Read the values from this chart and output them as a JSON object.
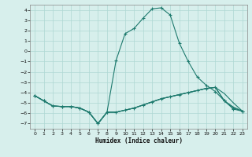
{
  "xlabel": "Humidex (Indice chaleur)",
  "background_color": "#d7efec",
  "grid_color": "#aed8d3",
  "line_color": "#1e7a6e",
  "xlim": [
    -0.5,
    23.5
  ],
  "ylim": [
    -7.5,
    4.5
  ],
  "xticks": [
    0,
    1,
    2,
    3,
    4,
    5,
    6,
    7,
    8,
    9,
    10,
    11,
    12,
    13,
    14,
    15,
    16,
    17,
    18,
    19,
    20,
    21,
    22,
    23
  ],
  "yticks": [
    4,
    3,
    2,
    1,
    0,
    -1,
    -2,
    -3,
    -4,
    -5,
    -6,
    -7
  ],
  "line1_x": [
    0,
    1,
    2,
    3,
    4,
    5,
    6,
    7,
    8,
    9,
    10,
    11,
    12,
    13,
    14,
    15,
    16,
    17,
    18,
    19,
    20,
    21,
    22,
    23
  ],
  "line1_y": [
    -4.3,
    -4.8,
    -5.3,
    -5.35,
    -5.35,
    -5.5,
    -5.9,
    -7.0,
    -5.9,
    -0.9,
    1.7,
    2.2,
    3.2,
    4.1,
    4.2,
    3.5,
    0.8,
    -1.0,
    -2.5,
    -3.3,
    -3.9,
    -4.8,
    -5.6,
    -5.8
  ],
  "line2_x": [
    0,
    1,
    2,
    3,
    4,
    5,
    6,
    7,
    8,
    9,
    10,
    11,
    12,
    13,
    14,
    15,
    16,
    17,
    18,
    19,
    20,
    21,
    22,
    23
  ],
  "line2_y": [
    -4.3,
    -4.8,
    -5.3,
    -5.35,
    -5.35,
    -5.5,
    -5.9,
    -7.0,
    -5.9,
    -5.9,
    -5.7,
    -5.5,
    -5.2,
    -4.9,
    -4.6,
    -4.4,
    -4.2,
    -4.0,
    -3.8,
    -3.6,
    -3.5,
    -4.8,
    -5.4,
    -5.8
  ],
  "line3_x": [
    0,
    1,
    2,
    3,
    4,
    5,
    6,
    7,
    8,
    9,
    10,
    11,
    12,
    13,
    14,
    15,
    16,
    17,
    18,
    19,
    20,
    21,
    22,
    23
  ],
  "line3_y": [
    -4.3,
    -4.8,
    -5.3,
    -5.35,
    -5.35,
    -5.5,
    -5.9,
    -7.0,
    -5.9,
    -5.9,
    -5.7,
    -5.5,
    -5.2,
    -4.9,
    -4.6,
    -4.4,
    -4.2,
    -4.0,
    -3.8,
    -3.6,
    -3.5,
    -4.1,
    -5.0,
    -5.8
  ],
  "line4_x": [
    0,
    1,
    2,
    3,
    4,
    5,
    6,
    7,
    8,
    9,
    10,
    11,
    12,
    13,
    14,
    15,
    16,
    17,
    18,
    19,
    20,
    21,
    22,
    23
  ],
  "line4_y": [
    -4.3,
    -4.8,
    -5.3,
    -5.35,
    -5.35,
    -5.5,
    -5.9,
    -7.0,
    -5.9,
    -5.9,
    -5.7,
    -5.5,
    -5.2,
    -4.9,
    -4.6,
    -4.4,
    -4.2,
    -4.0,
    -3.8,
    -3.6,
    -3.5,
    -4.8,
    -5.5,
    -5.8
  ]
}
